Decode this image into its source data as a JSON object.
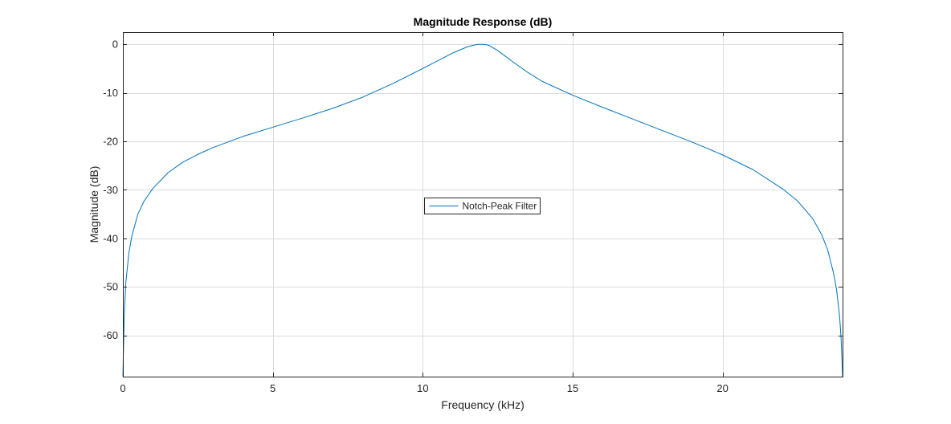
{
  "chart_data": {
    "type": "line",
    "title": "Magnitude Response (dB)",
    "xlabel": "Frequency (kHz)",
    "ylabel": "Magnitude (dB)",
    "xlim": [
      0,
      24
    ],
    "ylim": [
      -68.5,
      2.5
    ],
    "xticks": [
      0,
      5,
      10,
      15,
      20
    ],
    "yticks": [
      0,
      -10,
      -20,
      -30,
      -40,
      -50,
      -60
    ],
    "xtick_labels": [
      "0",
      "5",
      "10",
      "15",
      "20"
    ],
    "ytick_labels": [
      "0",
      "-10",
      "-20",
      "-30",
      "-40",
      "-50",
      "-60"
    ],
    "grid": true,
    "legend": {
      "placement": "center",
      "entries": [
        "Notch-Peak Filter"
      ]
    },
    "series": [
      {
        "name": "Notch-Peak Filter",
        "color": "#0072BD",
        "x": [
          0,
          0.02,
          0.05,
          0.1,
          0.2,
          0.3,
          0.5,
          0.7,
          1,
          1.5,
          2,
          2.5,
          3,
          4,
          5,
          6,
          7,
          8,
          9,
          10,
          10.5,
          11,
          11.5,
          11.8,
          12,
          12.2,
          12.5,
          13,
          13.5,
          14,
          15,
          16,
          17,
          18,
          19,
          20,
          21,
          22,
          22.5,
          23,
          23.3,
          23.5,
          23.7,
          23.8,
          23.9,
          23.95,
          23.98,
          24
        ],
        "y": [
          -68.5,
          -62.5,
          -55,
          -49,
          -43,
          -39.5,
          -35,
          -32.4,
          -29.7,
          -26.5,
          -24.3,
          -22.7,
          -21.3,
          -19,
          -17.1,
          -15.2,
          -13.2,
          -10.9,
          -8.1,
          -5,
          -3.4,
          -1.8,
          -0.5,
          -0.05,
          0,
          -0.2,
          -1.3,
          -3.6,
          -5.8,
          -7.7,
          -10.5,
          -13,
          -15.4,
          -17.8,
          -20.2,
          -22.8,
          -25.8,
          -29.8,
          -32.3,
          -35.9,
          -39.2,
          -42.3,
          -47.2,
          -50.6,
          -56,
          -60.5,
          -65,
          -68.5
        ]
      }
    ]
  }
}
